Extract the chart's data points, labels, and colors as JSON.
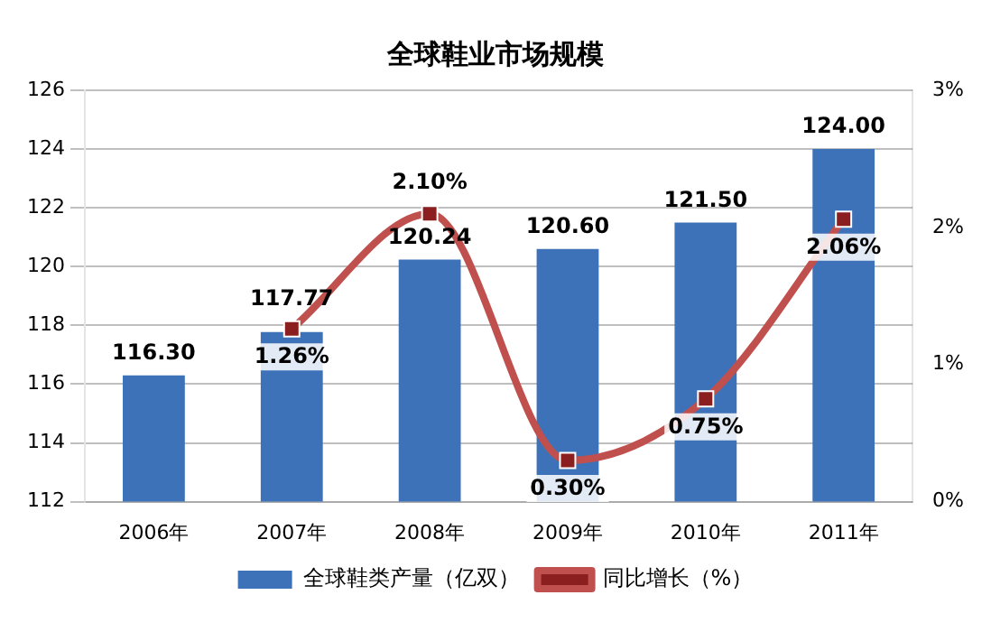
{
  "chart_data": {
    "type": "bar",
    "title": "全球鞋业市场规模",
    "categories": [
      "2006年",
      "2007年",
      "2008年",
      "2009年",
      "2010年",
      "2011年"
    ],
    "series": [
      {
        "name": "全球鞋类产量（亿双）",
        "color": "#3d72b8",
        "values": [
          116.3,
          117.77,
          120.24,
          120.6,
          121.5,
          124.0
        ],
        "value_labels": [
          "116.30",
          "117.77",
          "120.24",
          "120.60",
          "121.50",
          "124.00"
        ]
      },
      {
        "name": "同比增长（%）",
        "type": "line",
        "axis": "y2",
        "color": "#c0504d",
        "marker": "square",
        "line_style": "solid",
        "values": [
          null,
          1.26,
          2.1,
          0.3,
          0.75,
          2.06
        ],
        "value_labels": [
          null,
          "1.26%",
          "2.10%",
          "0.30%",
          "0.75%",
          "2.06%"
        ]
      }
    ],
    "ylim": [
      112,
      126
    ],
    "yticks": [
      112,
      114,
      116,
      118,
      120,
      122,
      124,
      126
    ],
    "y2lim": [
      0,
      3
    ],
    "y2ticks": [
      {
        "value": 0,
        "label": "0%"
      },
      {
        "value": 1,
        "label": "1%"
      },
      {
        "value": 2,
        "label": "2%"
      },
      {
        "value": 3,
        "label": "3%"
      }
    ],
    "grid": "y",
    "legend": "bottom"
  }
}
